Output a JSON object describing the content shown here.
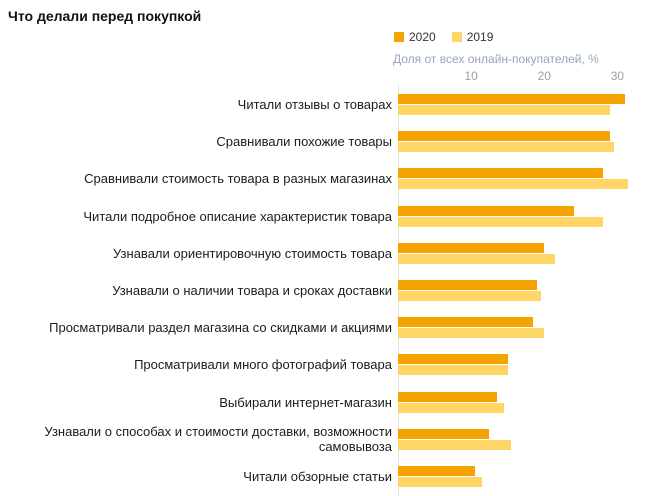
{
  "title": "Что делали перед покупкой",
  "colors": {
    "series_2020": "#f5a300",
    "series_2019": "#ffd666",
    "axis_caption": "#96a5bb",
    "tick_label": "#9aa0a6",
    "axis_line": "#e4e4e4"
  },
  "chart_data": {
    "type": "bar",
    "orientation": "horizontal",
    "title": "Что делали перед покупкой",
    "xlabel": "Доля от всех онлайн-покупателей, %",
    "ylabel": "",
    "xlim": [
      0,
      33.5
    ],
    "xticks": [
      10,
      20,
      30
    ],
    "grid": false,
    "legend_position": "top",
    "categories": [
      "Читали отзывы о товарах",
      "Сравнивали похожие товары",
      "Сравнивали стоимость товара в разных магазинах",
      "Читали подробное описание характеристик товара",
      "Узнавали ориентировочную стоимость товара",
      "Узнавали о наличии товара и сроках доставки",
      "Просматривали раздел магазина со скидками и акциями",
      "Просматривали много фотографий товара",
      "Выбирали интернет-магазин",
      "Узнавали о способах и стоимости доставки, возможности самовывоза",
      "Читали обзорные статьи"
    ],
    "series": [
      {
        "name": "2020",
        "color": "#f5a300",
        "values": [
          31,
          29,
          28,
          24,
          20,
          19,
          18.5,
          15,
          13.5,
          12.5,
          10.5
        ]
      },
      {
        "name": "2019",
        "color": "#ffd666",
        "values": [
          29,
          29.5,
          31.5,
          28,
          21.5,
          19.5,
          20,
          15,
          14.5,
          15.5,
          11.5
        ]
      }
    ]
  }
}
